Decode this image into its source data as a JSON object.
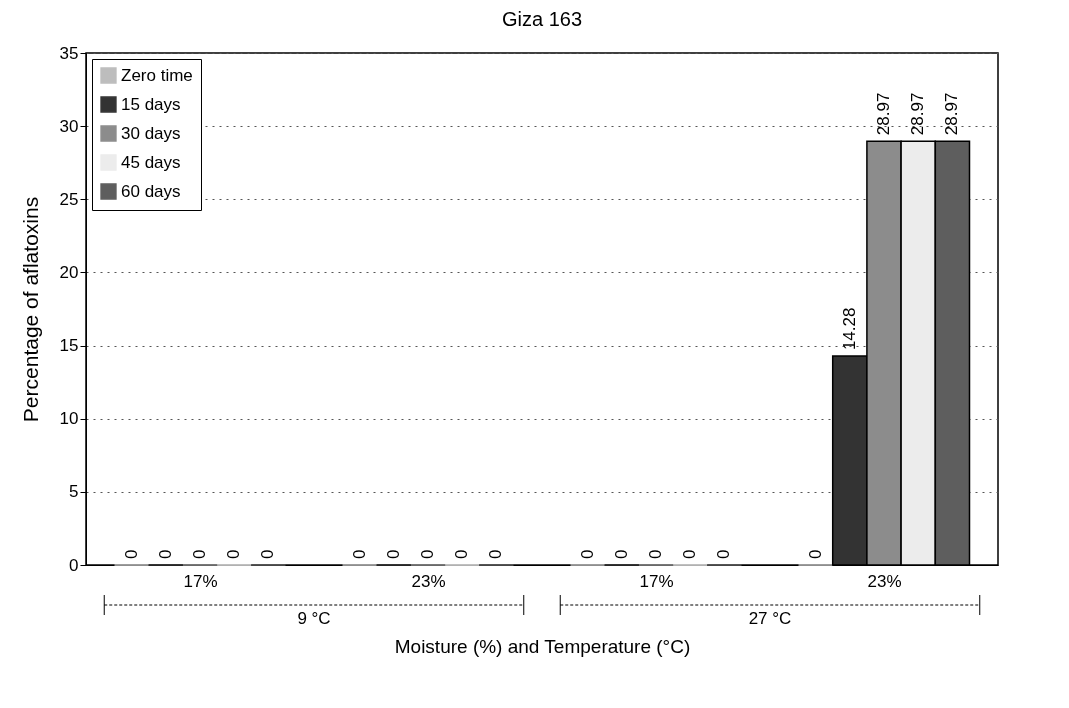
{
  "chart_data": {
    "type": "bar",
    "title": "Giza 163",
    "xlabel": "Moisture (%) and Temperature (°C)",
    "ylabel": "Percentage of aflatoxins",
    "categories": [
      "17%",
      "23%",
      "17%",
      "23%"
    ],
    "series": [
      {
        "name": "Zero time",
        "color": "#bdbdbd",
        "values": [
          0,
          0,
          0,
          0
        ]
      },
      {
        "name": "15 days",
        "color": "#333333",
        "values": [
          0,
          0,
          0,
          14.28
        ]
      },
      {
        "name": "30 days",
        "color": "#8c8c8c",
        "values": [
          0,
          0,
          0,
          28.97
        ]
      },
      {
        "name": "45 days",
        "color": "#ececec",
        "values": [
          0,
          0,
          0,
          28.97
        ]
      },
      {
        "name": "60 days",
        "color": "#5e5e5e",
        "values": [
          0,
          0,
          0,
          28.97
        ]
      }
    ],
    "ylim": [
      0,
      35
    ],
    "yticks": [
      0,
      5,
      10,
      15,
      20,
      25,
      30,
      35
    ],
    "grid": "y",
    "legend": "top left",
    "data_labels": true,
    "annotations": [
      "9 °C",
      "27 °C"
    ]
  }
}
